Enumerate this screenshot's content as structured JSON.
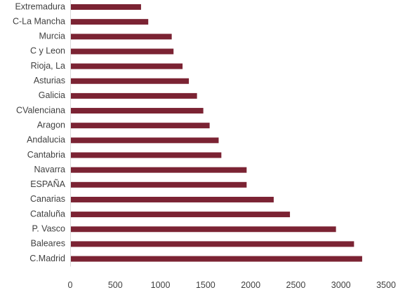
{
  "chart_data": {
    "type": "bar",
    "orientation": "horizontal",
    "categories": [
      "Extremadura",
      "C-La Mancha",
      "Murcia",
      "C y Leon",
      "Rioja, La",
      "Asturias",
      "Galicia",
      "CValenciana",
      "Aragon",
      "Andalucia",
      "Cantabria",
      "Navarra",
      "ESPAÑA",
      "Canarias",
      "Cataluña",
      "P. Vasco",
      "Baleares",
      "C.Madrid"
    ],
    "values": [
      785,
      865,
      1125,
      1145,
      1245,
      1315,
      1405,
      1475,
      1545,
      1645,
      1675,
      1955,
      1955,
      2255,
      2435,
      2945,
      3145,
      3235
    ],
    "xlim": [
      0,
      3500
    ],
    "xticks": [
      0,
      500,
      1000,
      1500,
      2000,
      2500,
      3000,
      3500
    ],
    "grid": false,
    "legend": "none",
    "bar_color": "#7b2333",
    "axis_color": "#d9d9d9",
    "title": "",
    "xlabel": "",
    "ylabel": ""
  }
}
